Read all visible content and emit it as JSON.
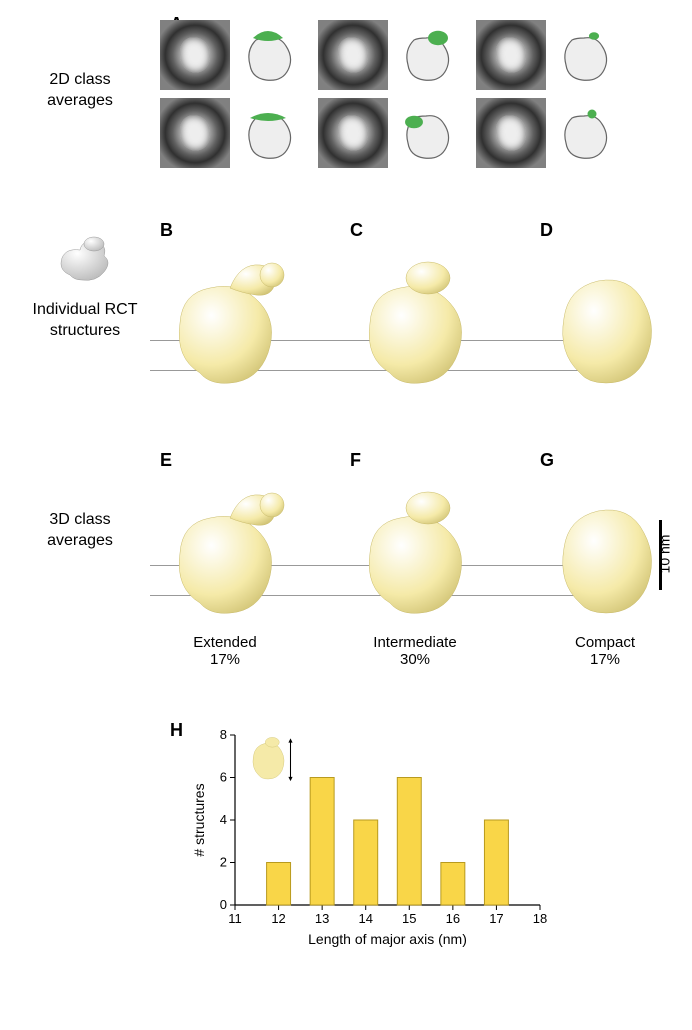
{
  "panelA": {
    "label": "A",
    "rowLabel": "2D class\naverages",
    "schematic_body_fill": "#eeeeee",
    "schematic_body_stroke": "#666666",
    "schematic_cap_fill": "#4caf50",
    "cells": [
      {
        "cap_scale": 1.0,
        "cap_variant": "wide"
      },
      {
        "cap_scale": 0.6,
        "cap_variant": "side"
      },
      {
        "cap_scale": 0.35,
        "cap_variant": "small"
      },
      {
        "cap_scale": 1.0,
        "cap_variant": "flat"
      },
      {
        "cap_scale": 0.55,
        "cap_variant": "side2"
      },
      {
        "cap_scale": 0.3,
        "cap_variant": "dot"
      }
    ]
  },
  "rct": {
    "rowLabel": "Individual RCT\nstructures",
    "ref_model_fill": "#d9d9d9",
    "struct_fill": "#f5eaa8",
    "struct_stroke": "#c9bb6a",
    "panels": [
      {
        "label": "B",
        "variant": "extended"
      },
      {
        "label": "C",
        "variant": "intermediate"
      },
      {
        "label": "D",
        "variant": "compact"
      }
    ]
  },
  "classAvg3d": {
    "rowLabel": "3D class\naverages",
    "panels": [
      {
        "label": "E",
        "variant": "extended",
        "caption": "Extended",
        "pct": "17%"
      },
      {
        "label": "F",
        "variant": "intermediate",
        "caption": "Intermediate",
        "pct": "30%"
      },
      {
        "label": "G",
        "variant": "compact",
        "caption": "Compact",
        "pct": "17%"
      }
    ],
    "scalebar": "10 nm"
  },
  "chart": {
    "label": "H",
    "ylabel": "# structures",
    "xlabel": "Length of major axis (nm)",
    "xlim": [
      11,
      18
    ],
    "ylim": [
      0,
      8
    ],
    "ytick_step": 2,
    "xticks": [
      11,
      12,
      13,
      14,
      15,
      16,
      17,
      18
    ],
    "bar_color": "#f9d648",
    "bar_stroke": "#b89a1f",
    "axis_color": "#000000",
    "bars": [
      {
        "x": 12,
        "y": 2
      },
      {
        "x": 13,
        "y": 6
      },
      {
        "x": 14,
        "y": 4
      },
      {
        "x": 15,
        "y": 6
      },
      {
        "x": 16,
        "y": 2
      },
      {
        "x": 17,
        "y": 4
      }
    ],
    "bar_width": 0.55,
    "label_fontsize": 13
  }
}
